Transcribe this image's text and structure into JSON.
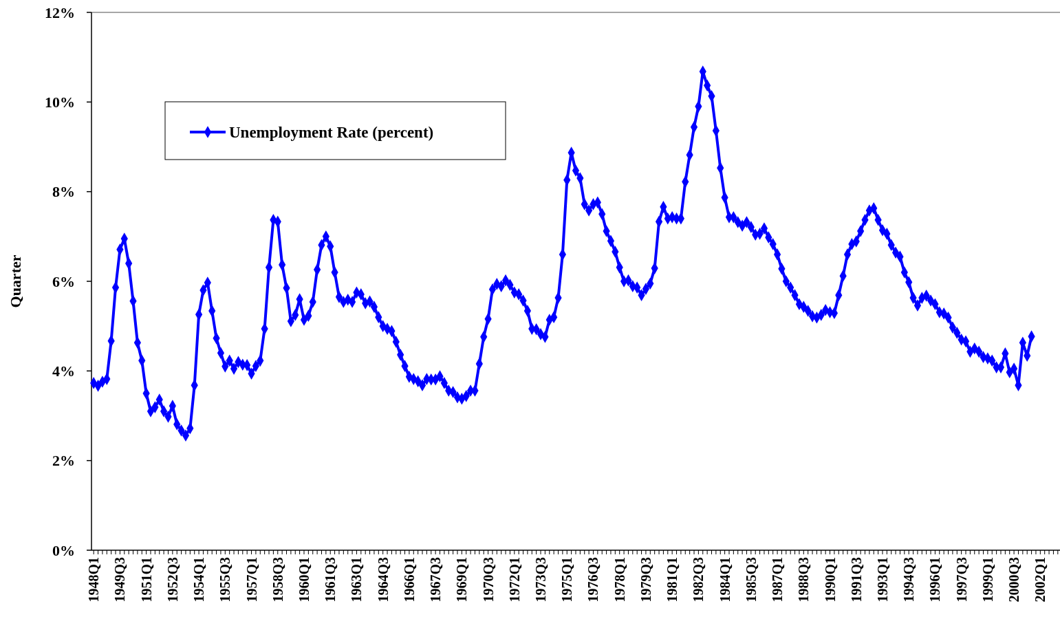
{
  "chart_data": {
    "type": "line",
    "ylabel": "Quarter",
    "categories": [
      "1948Q1",
      null,
      null,
      null,
      null,
      null,
      "1949Q3",
      null,
      null,
      null,
      null,
      null,
      "1951Q1",
      null,
      null,
      null,
      null,
      null,
      "1952Q3",
      null,
      null,
      null,
      null,
      null,
      "1954Q1",
      null,
      null,
      null,
      null,
      null,
      "1955Q3",
      null,
      null,
      null,
      null,
      null,
      "1957Q1",
      null,
      null,
      null,
      null,
      null,
      "1958Q3",
      null,
      null,
      null,
      null,
      null,
      "1960Q1",
      null,
      null,
      null,
      null,
      null,
      "1961Q3",
      null,
      null,
      null,
      null,
      null,
      "1963Q1",
      null,
      null,
      null,
      null,
      null,
      "1964Q3",
      null,
      null,
      null,
      null,
      null,
      "1966Q1",
      null,
      null,
      null,
      null,
      null,
      "1967Q3",
      null,
      null,
      null,
      null,
      null,
      "1969Q1",
      null,
      null,
      null,
      null,
      null,
      "1970Q3",
      null,
      null,
      null,
      null,
      null,
      "1972Q1",
      null,
      null,
      null,
      null,
      null,
      "1973Q3",
      null,
      null,
      null,
      null,
      null,
      "1975Q1",
      null,
      null,
      null,
      null,
      null,
      "1976Q3",
      null,
      null,
      null,
      null,
      null,
      "1978Q1",
      null,
      null,
      null,
      null,
      null,
      "1979Q3",
      null,
      null,
      null,
      null,
      null,
      "1981Q1",
      null,
      null,
      null,
      null,
      null,
      "1982Q3",
      null,
      null,
      null,
      null,
      null,
      "1984Q1",
      null,
      null,
      null,
      null,
      null,
      "1985Q3",
      null,
      null,
      null,
      null,
      null,
      "1987Q1",
      null,
      null,
      null,
      null,
      null,
      "1988Q3",
      null,
      null,
      null,
      null,
      null,
      "1990Q1",
      null,
      null,
      null,
      null,
      null,
      "1991Q3",
      null,
      null,
      null,
      null,
      null,
      "1993Q1",
      null,
      null,
      null,
      null,
      null,
      "1994Q3",
      null,
      null,
      null,
      null,
      null,
      "1996Q1",
      null,
      null,
      null,
      null,
      null,
      "1997Q3",
      null,
      null,
      null,
      null,
      null,
      "1999Q1",
      null,
      null,
      null,
      null,
      null,
      "2000Q3",
      null,
      null,
      null,
      null,
      null,
      "2002Q1",
      null,
      null,
      null,
      null
    ],
    "series": [
      {
        "name": "Unemployment Rate (percent)",
        "color": "#0000ff",
        "values": [
          3.73,
          3.67,
          3.76,
          3.82,
          4.67,
          5.86,
          6.71,
          6.95,
          6.4,
          5.56,
          4.63,
          4.23,
          3.5,
          3.1,
          3.19,
          3.36,
          3.1,
          2.98,
          3.22,
          2.81,
          2.67,
          2.56,
          2.72,
          3.68,
          5.26,
          5.8,
          5.97,
          5.34,
          4.73,
          4.4,
          4.1,
          4.23,
          4.05,
          4.2,
          4.14,
          4.13,
          3.94,
          4.11,
          4.23,
          4.94,
          6.31,
          7.37,
          7.33,
          6.37,
          5.85,
          5.11,
          5.25,
          5.6,
          5.14,
          5.23,
          5.54,
          6.26,
          6.81,
          7.0,
          6.78,
          6.2,
          5.65,
          5.54,
          5.59,
          5.54,
          5.75,
          5.71,
          5.51,
          5.55,
          5.43,
          5.2,
          5.0,
          4.94,
          4.89,
          4.65,
          4.36,
          4.11,
          3.87,
          3.82,
          3.77,
          3.68,
          3.82,
          3.81,
          3.81,
          3.88,
          3.73,
          3.56,
          3.53,
          3.41,
          3.38,
          3.44,
          3.56,
          3.56,
          4.16,
          4.76,
          5.16,
          5.82,
          5.94,
          5.89,
          6.02,
          5.92,
          5.75,
          5.71,
          5.57,
          5.34,
          4.94,
          4.93,
          4.82,
          4.76,
          5.14,
          5.2,
          5.63,
          6.6,
          8.26,
          8.87,
          8.47,
          8.3,
          7.72,
          7.58,
          7.72,
          7.76,
          7.5,
          7.12,
          6.9,
          6.66,
          6.31,
          6.0,
          6.02,
          5.89,
          5.86,
          5.69,
          5.83,
          5.95,
          6.29,
          7.33,
          7.66,
          7.4,
          7.43,
          7.4,
          7.4,
          8.22,
          8.82,
          9.44,
          9.9,
          10.68,
          10.37,
          10.13,
          9.36,
          8.53,
          7.87,
          7.43,
          7.43,
          7.32,
          7.24,
          7.32,
          7.21,
          7.04,
          7.06,
          7.18,
          6.98,
          6.83,
          6.6,
          6.28,
          6.0,
          5.86,
          5.69,
          5.49,
          5.43,
          5.34,
          5.22,
          5.19,
          5.25,
          5.36,
          5.31,
          5.29,
          5.69,
          6.12,
          6.6,
          6.83,
          6.89,
          7.12,
          7.37,
          7.58,
          7.63,
          7.37,
          7.14,
          7.06,
          6.81,
          6.64,
          6.55,
          6.2,
          5.98,
          5.63,
          5.46,
          5.63,
          5.68,
          5.57,
          5.49,
          5.31,
          5.28,
          5.19,
          4.97,
          4.85,
          4.7,
          4.66,
          4.43,
          4.5,
          4.43,
          4.31,
          4.28,
          4.23,
          4.08,
          4.08,
          4.39,
          3.97,
          4.05,
          3.68,
          4.63,
          4.34,
          4.77,
          null,
          null,
          null,
          null,
          null,
          null
        ]
      }
    ],
    "ylim": [
      0,
      12
    ],
    "yticks": [
      {
        "value": 0,
        "label": "0%"
      },
      {
        "value": 2,
        "label": "2%"
      },
      {
        "value": 4,
        "label": "4%"
      },
      {
        "value": 6,
        "label": "6%"
      },
      {
        "value": 8,
        "label": "8%"
      },
      {
        "value": 10,
        "label": "10%"
      },
      {
        "value": 12,
        "label": "12%"
      }
    ],
    "legend": "top left",
    "marker": "diamond",
    "line_style": "solid"
  }
}
